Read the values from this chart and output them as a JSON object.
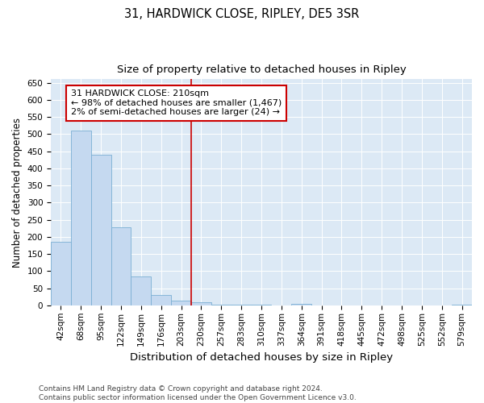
{
  "title": "31, HARDWICK CLOSE, RIPLEY, DE5 3SR",
  "subtitle": "Size of property relative to detached houses in Ripley",
  "xlabel": "Distribution of detached houses by size in Ripley",
  "ylabel": "Number of detached properties",
  "bar_labels": [
    "42sqm",
    "68sqm",
    "95sqm",
    "122sqm",
    "149sqm",
    "176sqm",
    "203sqm",
    "230sqm",
    "257sqm",
    "283sqm",
    "310sqm",
    "337sqm",
    "364sqm",
    "391sqm",
    "418sqm",
    "445sqm",
    "472sqm",
    "498sqm",
    "525sqm",
    "552sqm",
    "579sqm"
  ],
  "bar_values": [
    185,
    510,
    440,
    228,
    85,
    30,
    15,
    10,
    3,
    3,
    3,
    0,
    5,
    0,
    0,
    0,
    0,
    0,
    0,
    0,
    3
  ],
  "bar_color": "#c5d9f0",
  "bar_edge_color": "#7bafd4",
  "vline_x_idx": 6,
  "vline_color": "#cc0000",
  "annotation_line1": "31 HARDWICK CLOSE: 210sqm",
  "annotation_line2": "← 98% of detached houses are smaller (1,467)",
  "annotation_line3": "2% of semi-detached houses are larger (24) →",
  "annotation_box_color": "#ffffff",
  "annotation_box_edge": "#cc0000",
  "ylim": [
    0,
    660
  ],
  "yticks": [
    0,
    50,
    100,
    150,
    200,
    250,
    300,
    350,
    400,
    450,
    500,
    550,
    600,
    650
  ],
  "background_color": "#dce9f5",
  "footer_text": "Contains HM Land Registry data © Crown copyright and database right 2024.\nContains public sector information licensed under the Open Government Licence v3.0.",
  "title_fontsize": 10.5,
  "subtitle_fontsize": 9.5,
  "xlabel_fontsize": 9.5,
  "ylabel_fontsize": 8.5,
  "tick_fontsize": 7.5,
  "annotation_fontsize": 8,
  "footer_fontsize": 6.5
}
